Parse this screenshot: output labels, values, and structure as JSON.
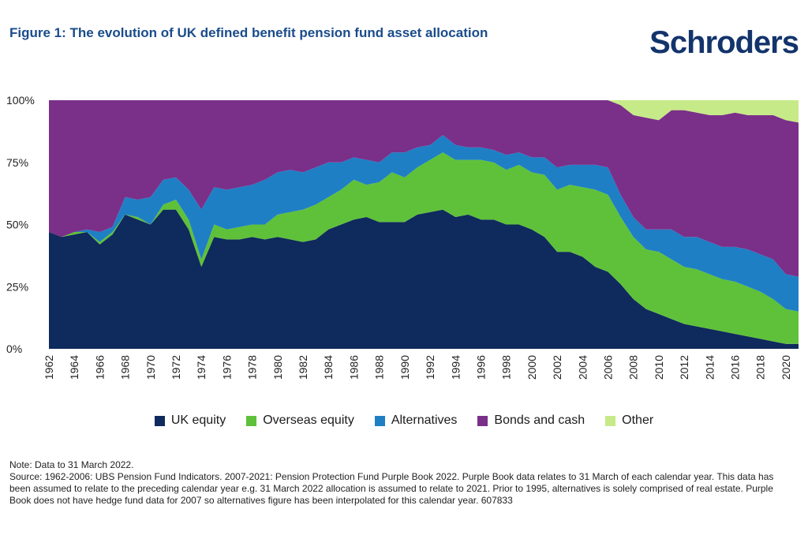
{
  "header": {
    "title": "Figure 1: The evolution of UK defined benefit pension fund asset allocation",
    "brand": "Schroders"
  },
  "notes": {
    "line1": "Note: Data to 31 March 2022.",
    "source": "Source: 1962-2006: UBS Pension Fund Indicators. 2007-2021: Pension Protection Fund Purple Book 2022. Purple Book data relates to 31 March of each calendar year. This data has been assumed to relate to the preceding calendar year e.g. 31 March 2022 allocation is assumed to relate to 2021.  Prior to 1995, alternatives is solely comprised of real estate. Purple Book does not have hedge fund data for 2007 so alternatives figure has been interpolated for this calendar year. 607833"
  },
  "colors": {
    "uk_equity": "#0f2a5c",
    "overseas_equity": "#5fc139",
    "alternatives": "#1f7fc4",
    "bonds_cash": "#7a2f89",
    "other": "#c6ea87"
  },
  "chart_data": {
    "type": "area",
    "stacked": true,
    "title": "",
    "xlabel": "",
    "ylabel": "",
    "ylim": [
      0,
      100
    ],
    "yticks": [
      "0%",
      "25%",
      "50%",
      "75%",
      "100%"
    ],
    "ytick_values": [
      0,
      25,
      50,
      75,
      100
    ],
    "xticks": [
      "1962",
      "1964",
      "1966",
      "1968",
      "1970",
      "1972",
      "1974",
      "1976",
      "1978",
      "1980",
      "1982",
      "1984",
      "1986",
      "1988",
      "1990",
      "1992",
      "1994",
      "1996",
      "1998",
      "2000",
      "2002",
      "2004",
      "2006",
      "2008",
      "2010",
      "2012",
      "2014",
      "2016",
      "2018",
      "2020"
    ],
    "x": [
      1962,
      1963,
      1964,
      1965,
      1966,
      1967,
      1968,
      1969,
      1970,
      1971,
      1972,
      1973,
      1974,
      1975,
      1976,
      1977,
      1978,
      1979,
      1980,
      1981,
      1982,
      1983,
      1984,
      1985,
      1986,
      1987,
      1988,
      1989,
      1990,
      1991,
      1992,
      1993,
      1994,
      1995,
      1996,
      1997,
      1998,
      1999,
      2000,
      2001,
      2002,
      2003,
      2004,
      2005,
      2006,
      2007,
      2008,
      2009,
      2010,
      2011,
      2012,
      2013,
      2014,
      2015,
      2016,
      2017,
      2018,
      2019,
      2020,
      2021
    ],
    "legend_position": "bottom",
    "series": [
      {
        "name": "UK equity",
        "color_key": "uk_equity",
        "values": [
          47,
          45,
          46,
          47,
          42,
          46,
          54,
          52,
          50,
          56,
          56,
          48,
          33,
          45,
          44,
          44,
          45,
          44,
          45,
          44,
          43,
          44,
          48,
          50,
          52,
          53,
          51,
          51,
          51,
          54,
          55,
          56,
          53,
          54,
          52,
          52,
          50,
          50,
          48,
          45,
          39,
          39,
          37,
          33,
          31,
          26,
          20,
          16,
          14,
          12,
          10,
          9,
          8,
          7,
          6,
          5,
          4,
          3,
          2,
          2
        ]
      },
      {
        "name": "Overseas equity",
        "color_key": "overseas_equity",
        "values": [
          0,
          0,
          1,
          0,
          1,
          1,
          0,
          1,
          0,
          2,
          4,
          4,
          3,
          5,
          4,
          5,
          5,
          6,
          9,
          11,
          13,
          14,
          13,
          14,
          16,
          13,
          16,
          20,
          18,
          19,
          21,
          23,
          23,
          22,
          24,
          23,
          22,
          24,
          23,
          25,
          25,
          27,
          28,
          31,
          31,
          27,
          25,
          24,
          25,
          24,
          23,
          23,
          22,
          21,
          21,
          20,
          19,
          17,
          14,
          13
        ]
      },
      {
        "name": "Alternatives",
        "color_key": "alternatives",
        "values": [
          0,
          0,
          0,
          1,
          4,
          2,
          7,
          7,
          11,
          10,
          9,
          12,
          20,
          15,
          16,
          16,
          16,
          18,
          17,
          17,
          15,
          15,
          14,
          11,
          9,
          10,
          8,
          8,
          10,
          8,
          6,
          7,
          6,
          5,
          5,
          5,
          6,
          5,
          6,
          7,
          9,
          8,
          9,
          10,
          11,
          9,
          8,
          8,
          9,
          12,
          12,
          13,
          13,
          13,
          14,
          15,
          15,
          16,
          14,
          14
        ]
      },
      {
        "name": "Bonds and cash",
        "color_key": "bonds_cash",
        "values": [
          53,
          55,
          53,
          52,
          53,
          51,
          39,
          40,
          39,
          32,
          31,
          36,
          44,
          35,
          36,
          35,
          34,
          32,
          29,
          28,
          29,
          27,
          25,
          25,
          23,
          24,
          25,
          21,
          21,
          19,
          18,
          14,
          18,
          19,
          19,
          20,
          22,
          21,
          23,
          23,
          27,
          26,
          26,
          26,
          27,
          36,
          41,
          45,
          44,
          48,
          51,
          50,
          51,
          53,
          54,
          54,
          56,
          58,
          62,
          62
        ]
      },
      {
        "name": "Other",
        "color_key": "other",
        "values": [
          0,
          0,
          0,
          0,
          0,
          0,
          0,
          0,
          0,
          0,
          0,
          0,
          0,
          0,
          0,
          0,
          0,
          0,
          0,
          0,
          0,
          0,
          0,
          0,
          0,
          0,
          0,
          0,
          0,
          0,
          0,
          0,
          0,
          0,
          0,
          0,
          0,
          0,
          0,
          0,
          0,
          0,
          0,
          0,
          0,
          2,
          6,
          7,
          8,
          4,
          4,
          5,
          6,
          6,
          5,
          6,
          6,
          6,
          8,
          9
        ]
      }
    ]
  }
}
